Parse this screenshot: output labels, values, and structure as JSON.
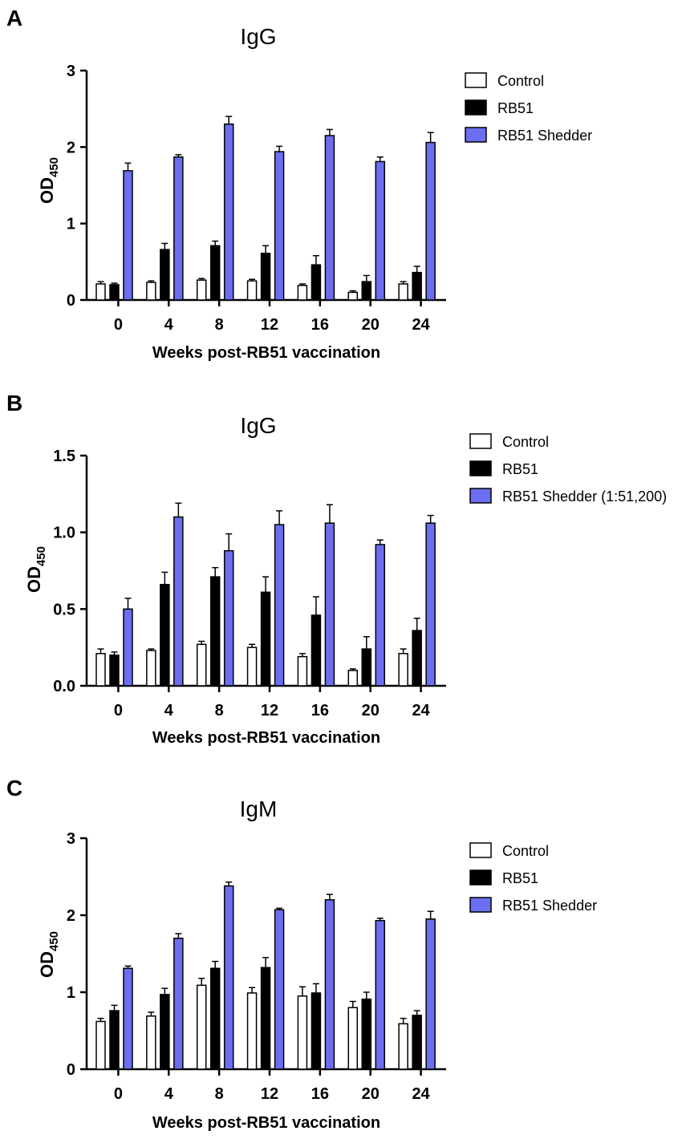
{
  "colors": {
    "control": "#ffffff",
    "rb51": "#000000",
    "shedder": "#6b6ef0",
    "axis": "#000000"
  },
  "chart_data": [
    {
      "panel": "A",
      "type": "bar",
      "title": "IgG",
      "xlabel": "Weeks post-RB51 vaccination",
      "ylabel_main": "OD",
      "ylabel_sub": "450",
      "ylim": [
        0,
        3
      ],
      "yticks": [
        "0",
        "1",
        "2",
        "3"
      ],
      "ytick_values": [
        0,
        1,
        2,
        3
      ],
      "categories": [
        "0",
        "4",
        "8",
        "12",
        "16",
        "20",
        "24"
      ],
      "series": [
        {
          "name": "Control",
          "key": "control",
          "values": [
            0.21,
            0.23,
            0.26,
            0.25,
            0.19,
            0.1,
            0.21
          ],
          "errors": [
            0.03,
            0.02,
            0.02,
            0.02,
            0.02,
            0.02,
            0.03
          ]
        },
        {
          "name": "RB51",
          "key": "rb51",
          "values": [
            0.2,
            0.66,
            0.71,
            0.61,
            0.46,
            0.24,
            0.36
          ],
          "errors": [
            0.02,
            0.08,
            0.06,
            0.1,
            0.12,
            0.08,
            0.08
          ]
        },
        {
          "name": "RB51 Shedder",
          "key": "shedder",
          "values": [
            1.69,
            1.87,
            2.3,
            1.94,
            2.15,
            1.81,
            2.06
          ],
          "errors": [
            0.1,
            0.03,
            0.1,
            0.07,
            0.08,
            0.06,
            0.13
          ]
        }
      ],
      "legend": [
        "Control",
        "RB51",
        "RB51 Shedder"
      ]
    },
    {
      "panel": "B",
      "type": "bar",
      "title": "IgG",
      "xlabel": "Weeks post-RB51 vaccination",
      "ylabel_main": "OD",
      "ylabel_sub": "450",
      "ylim": [
        0,
        1.5
      ],
      "yticks": [
        "0.0",
        "0.5",
        "1.0",
        "1.5"
      ],
      "ytick_values": [
        0,
        0.5,
        1.0,
        1.5
      ],
      "categories": [
        "0",
        "4",
        "8",
        "12",
        "16",
        "20",
        "24"
      ],
      "series": [
        {
          "name": "Control",
          "key": "control",
          "values": [
            0.21,
            0.23,
            0.27,
            0.25,
            0.19,
            0.1,
            0.21
          ],
          "errors": [
            0.03,
            0.01,
            0.02,
            0.02,
            0.02,
            0.01,
            0.03
          ]
        },
        {
          "name": "RB51",
          "key": "rb51",
          "values": [
            0.2,
            0.66,
            0.71,
            0.61,
            0.46,
            0.24,
            0.36
          ],
          "errors": [
            0.02,
            0.08,
            0.06,
            0.1,
            0.12,
            0.08,
            0.08
          ]
        },
        {
          "name": "RB51 Shedder (1:51,200)",
          "key": "shedder",
          "values": [
            0.5,
            1.1,
            0.88,
            1.05,
            1.06,
            0.92,
            1.06
          ],
          "errors": [
            0.07,
            0.09,
            0.11,
            0.09,
            0.12,
            0.03,
            0.05
          ]
        }
      ],
      "legend": [
        "Control",
        "RB51",
        "RB51 Shedder (1:51,200)"
      ]
    },
    {
      "panel": "C",
      "type": "bar",
      "title": "IgM",
      "xlabel": "Weeks post-RB51 vaccination",
      "ylabel_main": "OD",
      "ylabel_sub": "450",
      "ylim": [
        0,
        3
      ],
      "yticks": [
        "0",
        "1",
        "2",
        "3"
      ],
      "ytick_values": [
        0,
        1,
        2,
        3
      ],
      "categories": [
        "0",
        "4",
        "8",
        "12",
        "16",
        "20",
        "24"
      ],
      "series": [
        {
          "name": "Control",
          "key": "control",
          "values": [
            0.62,
            0.69,
            1.09,
            0.99,
            0.95,
            0.8,
            0.59
          ],
          "errors": [
            0.04,
            0.05,
            0.09,
            0.07,
            0.12,
            0.08,
            0.07
          ]
        },
        {
          "name": "RB51",
          "key": "rb51",
          "values": [
            0.76,
            0.97,
            1.31,
            1.32,
            0.99,
            0.91,
            0.7
          ],
          "errors": [
            0.07,
            0.08,
            0.09,
            0.13,
            0.12,
            0.09,
            0.06
          ]
        },
        {
          "name": "RB51 Shedder",
          "key": "shedder",
          "values": [
            1.31,
            1.7,
            2.38,
            2.07,
            2.2,
            1.93,
            1.95
          ],
          "errors": [
            0.03,
            0.06,
            0.05,
            0.02,
            0.07,
            0.03,
            0.1
          ]
        }
      ],
      "legend": [
        "Control",
        "RB51",
        "RB51 Shedder"
      ]
    }
  ]
}
